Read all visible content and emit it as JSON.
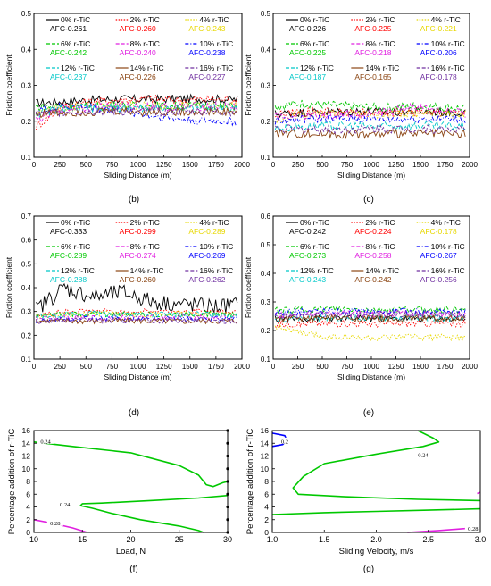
{
  "chart_data": [
    {
      "id": "b",
      "type": "line",
      "caption": "(b)",
      "xlabel": "Sliding Distance (m)",
      "ylabel": "Friction coefficient",
      "xlim": [
        0,
        2000
      ],
      "ylim": [
        0.1,
        0.5
      ],
      "xticks": [
        0,
        250,
        500,
        750,
        1000,
        1250,
        1500,
        1750,
        2000
      ],
      "yticks": [
        0.1,
        0.2,
        0.3,
        0.4,
        0.5
      ],
      "grid": false,
      "legend_position": "top",
      "series": [
        {
          "name": "0% r-TiC",
          "afc": "AFC-0.261",
          "color": "#000000",
          "dash": "solid",
          "values": [
            0.25,
            0.255,
            0.26,
            0.262,
            0.261,
            0.263,
            0.262,
            0.26
          ]
        },
        {
          "name": "2% r-TiC",
          "afc": "AFC-0.260",
          "color": "#ff0000",
          "dash": "dot",
          "values": [
            0.18,
            0.245,
            0.255,
            0.26,
            0.262,
            0.258,
            0.262,
            0.26
          ]
        },
        {
          "name": "4% r-TiC",
          "afc": "AFC-0.243",
          "color": "#e8d800",
          "dash": "dot",
          "values": [
            0.22,
            0.238,
            0.243,
            0.245,
            0.242,
            0.246,
            0.244,
            0.243
          ]
        },
        {
          "name": "6% r-TiC",
          "afc": "AFC-0.242",
          "color": "#00c800",
          "dash": "dash",
          "values": [
            0.24,
            0.242,
            0.24,
            0.244,
            0.242,
            0.243,
            0.241,
            0.242
          ]
        },
        {
          "name": "8% r-TiC",
          "afc": "AFC-0.240",
          "color": "#e020e0",
          "dash": "dash",
          "values": [
            0.2,
            0.235,
            0.24,
            0.242,
            0.241,
            0.24,
            0.242,
            0.24
          ]
        },
        {
          "name": "10% r-TiC",
          "afc": "AFC-0.238",
          "color": "#0000ff",
          "dash": "dashdot",
          "values": [
            0.23,
            0.24,
            0.238,
            0.23,
            0.215,
            0.205,
            0.2,
            0.2
          ]
        },
        {
          "name": "12% r-TiC",
          "afc": "AFC-0.237",
          "color": "#00c8c8",
          "dash": "dash",
          "values": [
            0.22,
            0.235,
            0.237,
            0.238,
            0.236,
            0.238,
            0.237,
            0.236
          ]
        },
        {
          "name": "14% r-TiC",
          "afc": "AFC-0.226",
          "color": "#8b4513",
          "dash": "solid",
          "values": [
            0.22,
            0.225,
            0.226,
            0.228,
            0.225,
            0.227,
            0.226,
            0.226
          ]
        },
        {
          "name": "16% r-TiC",
          "afc": "AFC-0.227",
          "color": "#7030a0",
          "dash": "dash",
          "values": [
            0.22,
            0.226,
            0.228,
            0.227,
            0.226,
            0.228,
            0.227,
            0.226
          ]
        }
      ]
    },
    {
      "id": "c",
      "type": "line",
      "caption": "(c)",
      "xlabel": "Sliding Distance (m)",
      "ylabel": "Friction coefficient",
      "xlim": [
        0,
        2000
      ],
      "ylim": [
        0.1,
        0.5
      ],
      "xticks": [
        0,
        250,
        500,
        750,
        1000,
        1250,
        1500,
        1750,
        2000
      ],
      "yticks": [
        0.1,
        0.2,
        0.3,
        0.4,
        0.5
      ],
      "grid": false,
      "legend_position": "top",
      "series": [
        {
          "name": "0% r-TiC",
          "afc": "AFC-0.226",
          "color": "#000000",
          "dash": "solid",
          "values": [
            0.22,
            0.225,
            0.226,
            0.228,
            0.225,
            0.227,
            0.226,
            0.225
          ]
        },
        {
          "name": "2% r-TiC",
          "afc": "AFC-0.225",
          "color": "#ff0000",
          "dash": "dot",
          "values": [
            0.22,
            0.224,
            0.226,
            0.225,
            0.224,
            0.226,
            0.225,
            0.225
          ]
        },
        {
          "name": "4% r-TiC",
          "afc": "AFC-0.221",
          "color": "#e8d800",
          "dash": "dot",
          "values": [
            0.2,
            0.218,
            0.221,
            0.223,
            0.22,
            0.222,
            0.221,
            0.22
          ]
        },
        {
          "name": "6% r-TiC",
          "afc": "AFC-0.225",
          "color": "#00c800",
          "dash": "dash",
          "values": [
            0.24,
            0.25,
            0.245,
            0.24,
            0.238,
            0.242,
            0.24,
            0.235
          ]
        },
        {
          "name": "8% r-TiC",
          "afc": "AFC-0.218",
          "color": "#e020e0",
          "dash": "dash",
          "values": [
            0.21,
            0.215,
            0.218,
            0.22,
            0.225,
            0.24,
            0.23,
            0.22
          ]
        },
        {
          "name": "10% r-TiC",
          "afc": "AFC-0.206",
          "color": "#0000ff",
          "dash": "dashdot",
          "values": [
            0.2,
            0.205,
            0.207,
            0.206,
            0.205,
            0.207,
            0.206,
            0.205
          ]
        },
        {
          "name": "12% r-TiC",
          "afc": "AFC-0.187",
          "color": "#00c8c8",
          "dash": "dash",
          "values": [
            0.18,
            0.186,
            0.188,
            0.187,
            0.186,
            0.188,
            0.187,
            0.186
          ]
        },
        {
          "name": "14% r-TiC",
          "afc": "AFC-0.165",
          "color": "#8b4513",
          "dash": "solid",
          "values": [
            0.168,
            0.166,
            0.165,
            0.164,
            0.165,
            0.166,
            0.165,
            0.164
          ]
        },
        {
          "name": "16% r-TiC",
          "afc": "AFC-0.178",
          "color": "#7030a0",
          "dash": "dash",
          "values": [
            0.18,
            0.178,
            0.177,
            0.178,
            0.179,
            0.178,
            0.177,
            0.178
          ]
        }
      ]
    },
    {
      "id": "d",
      "type": "line",
      "caption": "(d)",
      "xlabel": "Sliding Distance (m)",
      "ylabel": "Friction coefficient",
      "xlim": [
        0,
        2000
      ],
      "ylim": [
        0.1,
        0.7
      ],
      "xticks": [
        0,
        250,
        500,
        750,
        1000,
        1250,
        1500,
        1750,
        2000
      ],
      "yticks": [
        0.1,
        0.2,
        0.3,
        0.4,
        0.5,
        0.6,
        0.7
      ],
      "grid": false,
      "legend_position": "top",
      "series": [
        {
          "name": "0% r-TiC",
          "afc": "AFC-0.333",
          "color": "#000000",
          "dash": "solid",
          "values": [
            0.3,
            0.4,
            0.36,
            0.38,
            0.34,
            0.33,
            0.32,
            0.33
          ]
        },
        {
          "name": "2% r-TiC",
          "afc": "AFC-0.299",
          "color": "#ff0000",
          "dash": "dot",
          "values": [
            0.28,
            0.3,
            0.3,
            0.299,
            0.3,
            0.298,
            0.3,
            0.299
          ]
        },
        {
          "name": "4% r-TiC",
          "afc": "AFC-0.289",
          "color": "#e8d800",
          "dash": "dot",
          "values": [
            0.28,
            0.288,
            0.29,
            0.289,
            0.288,
            0.29,
            0.289,
            0.288
          ]
        },
        {
          "name": "6% r-TiC",
          "afc": "AFC-0.289",
          "color": "#00c800",
          "dash": "dash",
          "values": [
            0.28,
            0.29,
            0.289,
            0.29,
            0.288,
            0.289,
            0.29,
            0.289
          ]
        },
        {
          "name": "8% r-TiC",
          "afc": "AFC-0.274",
          "color": "#e020e0",
          "dash": "dash",
          "values": [
            0.27,
            0.274,
            0.275,
            0.274,
            0.273,
            0.275,
            0.274,
            0.273
          ]
        },
        {
          "name": "10% r-TiC",
          "afc": "AFC-0.269",
          "color": "#0000ff",
          "dash": "dashdot",
          "values": [
            0.26,
            0.268,
            0.27,
            0.269,
            0.268,
            0.27,
            0.269,
            0.268
          ]
        },
        {
          "name": "12% r-TiC",
          "afc": "AFC-0.288",
          "color": "#00c8c8",
          "dash": "dash",
          "values": [
            0.28,
            0.288,
            0.29,
            0.288,
            0.287,
            0.289,
            0.288,
            0.287
          ]
        },
        {
          "name": "14% r-TiC",
          "afc": "AFC-0.260",
          "color": "#8b4513",
          "dash": "solid",
          "values": [
            0.26,
            0.26,
            0.259,
            0.261,
            0.26,
            0.259,
            0.26,
            0.26
          ]
        },
        {
          "name": "16% r-TiC",
          "afc": "AFC-0.262",
          "color": "#7030a0",
          "dash": "dash",
          "values": [
            0.26,
            0.262,
            0.263,
            0.262,
            0.261,
            0.263,
            0.262,
            0.261
          ]
        }
      ]
    },
    {
      "id": "e",
      "type": "line",
      "caption": "(e)",
      "xlabel": "Sliding Distance (m)",
      "ylabel": "Friction coefficient",
      "xlim": [
        0,
        2000
      ],
      "ylim": [
        0.1,
        0.6
      ],
      "xticks": [
        0,
        250,
        500,
        750,
        1000,
        1250,
        1500,
        1750,
        2000
      ],
      "yticks": [
        0.1,
        0.2,
        0.3,
        0.4,
        0.5,
        0.6
      ],
      "grid": false,
      "legend_position": "top",
      "series": [
        {
          "name": "0% r-TiC",
          "afc": "AFC-0.242",
          "color": "#000000",
          "dash": "solid",
          "values": [
            0.24,
            0.242,
            0.243,
            0.242,
            0.241,
            0.243,
            0.242,
            0.241
          ]
        },
        {
          "name": "2% r-TiC",
          "afc": "AFC-0.224",
          "color": "#ff0000",
          "dash": "dot",
          "values": [
            0.22,
            0.224,
            0.225,
            0.224,
            0.223,
            0.225,
            0.224,
            0.223
          ]
        },
        {
          "name": "4% r-TiC",
          "afc": "AFC-0.178",
          "color": "#e8d800",
          "dash": "dot",
          "values": [
            0.22,
            0.19,
            0.178,
            0.175,
            0.172,
            0.178,
            0.176,
            0.175
          ]
        },
        {
          "name": "6% r-TiC",
          "afc": "AFC-0.273",
          "color": "#00c800",
          "dash": "dash",
          "values": [
            0.27,
            0.273,
            0.275,
            0.273,
            0.272,
            0.274,
            0.273,
            0.272
          ]
        },
        {
          "name": "8% r-TiC",
          "afc": "AFC-0.258",
          "color": "#e020e0",
          "dash": "dash",
          "values": [
            0.25,
            0.258,
            0.26,
            0.258,
            0.257,
            0.259,
            0.258,
            0.257
          ]
        },
        {
          "name": "10% r-TiC",
          "afc": "AFC-0.267",
          "color": "#0000ff",
          "dash": "dashdot",
          "values": [
            0.26,
            0.267,
            0.268,
            0.267,
            0.266,
            0.268,
            0.267,
            0.266
          ]
        },
        {
          "name": "12% r-TiC",
          "afc": "AFC-0.243",
          "color": "#00c8c8",
          "dash": "dash",
          "values": [
            0.24,
            0.243,
            0.245,
            0.243,
            0.242,
            0.244,
            0.243,
            0.242
          ]
        },
        {
          "name": "14% r-TiC",
          "afc": "AFC-0.242",
          "color": "#8b4513",
          "dash": "solid",
          "values": [
            0.24,
            0.242,
            0.243,
            0.242,
            0.241,
            0.243,
            0.242,
            0.241
          ]
        },
        {
          "name": "16% r-TiC",
          "afc": "AFC-0.256",
          "color": "#7030a0",
          "dash": "dash",
          "values": [
            0.25,
            0.256,
            0.257,
            0.256,
            0.255,
            0.257,
            0.256,
            0.255
          ]
        }
      ]
    },
    {
      "id": "f",
      "type": "contour",
      "caption": "(f)",
      "xlabel": "Load, N",
      "ylabel": "Percentage addition of r-TiC",
      "xlim": [
        10,
        30
      ],
      "ylim": [
        0,
        16
      ],
      "xticks": [
        10,
        15,
        20,
        25,
        30
      ],
      "yticks": [
        0,
        2,
        4,
        6,
        8,
        10,
        12,
        14,
        16
      ],
      "contours": [
        {
          "level": "0.24",
          "color": "#00c800",
          "points": [
            [
              10,
              14.2
            ],
            [
              14,
              13.5
            ],
            [
              20,
              12.5
            ],
            [
              25,
              10.5
            ],
            [
              27,
              9.0
            ],
            [
              27.8,
              7.5
            ],
            [
              28.5,
              7.2
            ],
            [
              29.5,
              7.8
            ],
            [
              30,
              8.0
            ]
          ]
        },
        {
          "level": "0.24",
          "color": "#00c800",
          "points": [
            [
              30,
              5.8
            ],
            [
              27,
              5.4
            ],
            [
              22,
              5.0
            ],
            [
              17,
              4.6
            ],
            [
              15,
              4.5
            ],
            [
              14.8,
              4.2
            ],
            [
              16,
              3.8
            ],
            [
              18,
              3.0
            ],
            [
              21,
              2.0
            ],
            [
              25,
              1.0
            ],
            [
              27,
              0.3
            ],
            [
              27.5,
              0
            ]
          ]
        },
        {
          "level": "0.28",
          "color": "#e020e0",
          "points": [
            [
              10,
              2.0
            ],
            [
              12,
              1.4
            ],
            [
              14,
              0.7
            ],
            [
              15.5,
              0
            ]
          ]
        }
      ],
      "contour_labels": [
        {
          "text": "0.24",
          "x": 11.2,
          "y": 14.2
        },
        {
          "text": "0.24",
          "x": 13.2,
          "y": 4.3
        },
        {
          "text": "0.28",
          "x": 12.2,
          "y": 1.3
        }
      ]
    },
    {
      "id": "g",
      "type": "contour",
      "caption": "(g)",
      "xlabel": "Sliding Velocity, m/s",
      "ylabel": "Percentage addition of r-TiC",
      "xlim": [
        1.0,
        3.0
      ],
      "ylim": [
        0,
        16
      ],
      "xticks": [
        "1.0",
        "1.5",
        "2.0",
        "2.5",
        "3.0"
      ],
      "yticks": [
        0,
        2,
        4,
        6,
        8,
        10,
        12,
        14,
        16
      ],
      "contours": [
        {
          "level": "0.2",
          "color": "#0000ff",
          "points": [
            [
              1.0,
              15.6
            ],
            [
              1.12,
              15.2
            ],
            [
              1.14,
              14.5
            ],
            [
              1.1,
              13.8
            ],
            [
              1.0,
              13.5
            ]
          ]
        },
        {
          "level": "0.24",
          "color": "#00c800",
          "points": [
            [
              2.4,
              16
            ],
            [
              2.55,
              14.8
            ],
            [
              2.6,
              14.2
            ],
            [
              2.45,
              13.5
            ],
            [
              2.0,
              12.3
            ],
            [
              1.5,
              10.8
            ],
            [
              1.3,
              8.8
            ],
            [
              1.2,
              7.0
            ],
            [
              1.25,
              6.0
            ],
            [
              1.7,
              5.6
            ],
            [
              2.4,
              5.2
            ],
            [
              3.0,
              5.0
            ]
          ]
        },
        {
          "level": "0.24",
          "color": "#00c800",
          "points": [
            [
              1.0,
              2.8
            ],
            [
              1.5,
              3.1
            ],
            [
              2.0,
              3.3
            ],
            [
              2.5,
              3.5
            ],
            [
              3.0,
              3.7
            ]
          ]
        },
        {
          "level": "0.28",
          "color": "#e020e0",
          "points": [
            [
              2.3,
              0
            ],
            [
              2.6,
              0.3
            ],
            [
              2.85,
              0.6
            ],
            [
              3.0,
              0.9
            ]
          ]
        },
        {
          "level": "",
          "color": "#e020e0",
          "points": [
            [
              2.97,
              6.1
            ],
            [
              3.0,
              6.3
            ]
          ]
        }
      ],
      "contour_labels": [
        {
          "text": "0.2",
          "x": 1.12,
          "y": 14.2
        },
        {
          "text": "0.24",
          "x": 2.45,
          "y": 12.1
        },
        {
          "text": "0.28",
          "x": 2.93,
          "y": 0.5
        }
      ]
    }
  ]
}
